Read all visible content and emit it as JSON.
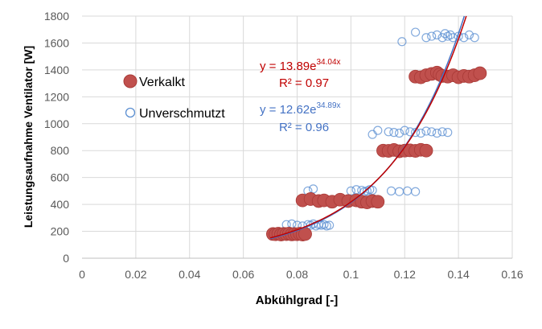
{
  "chart_data": {
    "type": "scatter",
    "title": "",
    "xlabel": "Abkühlgrad [-]",
    "ylabel": "Leistungsaufnahme Ventilator [W]",
    "xlim": [
      0,
      0.16
    ],
    "ylim": [
      0,
      1800
    ],
    "x_ticks": [
      "0",
      "0.02",
      "0.04",
      "0.06",
      "0.08",
      "0.1",
      "0.12",
      "0.14",
      "0.16"
    ],
    "y_ticks": [
      "0",
      "200",
      "400",
      "600",
      "800",
      "1000",
      "1200",
      "1400",
      "1600",
      "1800"
    ],
    "grid": true,
    "legend_position": "left",
    "series": [
      {
        "name": "Verkalkt",
        "marker": "filled-circle",
        "color": "#c0392b",
        "points": [
          [
            0.071,
            180
          ],
          [
            0.072,
            178
          ],
          [
            0.073,
            182
          ],
          [
            0.074,
            176
          ],
          [
            0.075,
            181
          ],
          [
            0.076,
            179
          ],
          [
            0.077,
            183
          ],
          [
            0.078,
            177
          ],
          [
            0.079,
            180
          ],
          [
            0.08,
            178
          ],
          [
            0.081,
            182
          ],
          [
            0.082,
            176
          ],
          [
            0.083,
            180
          ],
          [
            0.082,
            430
          ],
          [
            0.085,
            440
          ],
          [
            0.088,
            425
          ],
          [
            0.09,
            430
          ],
          [
            0.093,
            420
          ],
          [
            0.096,
            435
          ],
          [
            0.099,
            425
          ],
          [
            0.102,
            430
          ],
          [
            0.104,
            420
          ],
          [
            0.106,
            415
          ],
          [
            0.108,
            425
          ],
          [
            0.11,
            420
          ],
          [
            0.112,
            800
          ],
          [
            0.114,
            798
          ],
          [
            0.116,
            805
          ],
          [
            0.118,
            795
          ],
          [
            0.12,
            800
          ],
          [
            0.122,
            802
          ],
          [
            0.124,
            798
          ],
          [
            0.126,
            806
          ],
          [
            0.128,
            800
          ],
          [
            0.124,
            1350
          ],
          [
            0.126,
            1345
          ],
          [
            0.128,
            1360
          ],
          [
            0.13,
            1370
          ],
          [
            0.132,
            1380
          ],
          [
            0.133,
            1365
          ],
          [
            0.134,
            1355
          ],
          [
            0.136,
            1350
          ],
          [
            0.138,
            1360
          ],
          [
            0.14,
            1345
          ],
          [
            0.142,
            1355
          ],
          [
            0.144,
            1350
          ],
          [
            0.146,
            1360
          ],
          [
            0.148,
            1375
          ]
        ],
        "fit": {
          "a": 13.89,
          "b": 34.04,
          "r2": 0.97
        }
      },
      {
        "name": "Unverschmutzt",
        "marker": "open-circle",
        "color": "#5b8fd1",
        "points": [
          [
            0.076,
            250
          ],
          [
            0.078,
            255
          ],
          [
            0.08,
            245
          ],
          [
            0.082,
            240
          ],
          [
            0.084,
            250
          ],
          [
            0.085,
            245
          ],
          [
            0.086,
            255
          ],
          [
            0.087,
            240
          ],
          [
            0.088,
            250
          ],
          [
            0.089,
            245
          ],
          [
            0.09,
            250
          ],
          [
            0.091,
            240
          ],
          [
            0.092,
            245
          ],
          [
            0.084,
            500
          ],
          [
            0.086,
            515
          ],
          [
            0.1,
            500
          ],
          [
            0.102,
            510
          ],
          [
            0.104,
            505
          ],
          [
            0.105,
            495
          ],
          [
            0.106,
            500
          ],
          [
            0.107,
            510
          ],
          [
            0.108,
            505
          ],
          [
            0.115,
            500
          ],
          [
            0.118,
            495
          ],
          [
            0.121,
            500
          ],
          [
            0.124,
            495
          ],
          [
            0.108,
            920
          ],
          [
            0.11,
            950
          ],
          [
            0.114,
            940
          ],
          [
            0.116,
            935
          ],
          [
            0.118,
            930
          ],
          [
            0.12,
            950
          ],
          [
            0.122,
            940
          ],
          [
            0.124,
            935
          ],
          [
            0.126,
            930
          ],
          [
            0.128,
            945
          ],
          [
            0.13,
            940
          ],
          [
            0.132,
            930
          ],
          [
            0.134,
            940
          ],
          [
            0.136,
            935
          ],
          [
            0.119,
            1610
          ],
          [
            0.124,
            1680
          ],
          [
            0.128,
            1640
          ],
          [
            0.13,
            1650
          ],
          [
            0.132,
            1660
          ],
          [
            0.134,
            1640
          ],
          [
            0.135,
            1670
          ],
          [
            0.136,
            1650
          ],
          [
            0.137,
            1660
          ],
          [
            0.138,
            1640
          ],
          [
            0.14,
            1650
          ],
          [
            0.142,
            1640
          ],
          [
            0.144,
            1660
          ],
          [
            0.146,
            1640
          ]
        ],
        "fit": {
          "a": 12.62,
          "b": 34.89,
          "r2": 0.96
        }
      }
    ],
    "annotations": {
      "verkalkt_eq_prefix": "y = 13.89e",
      "verkalkt_eq_exp": "34.04x",
      "verkalkt_r2": "R² = 0.97",
      "unverschmutzt_eq_prefix": "y = 12.62e",
      "unverschmutzt_eq_exp": "34.89x",
      "unverschmutzt_r2": "R² = 0.96"
    }
  }
}
